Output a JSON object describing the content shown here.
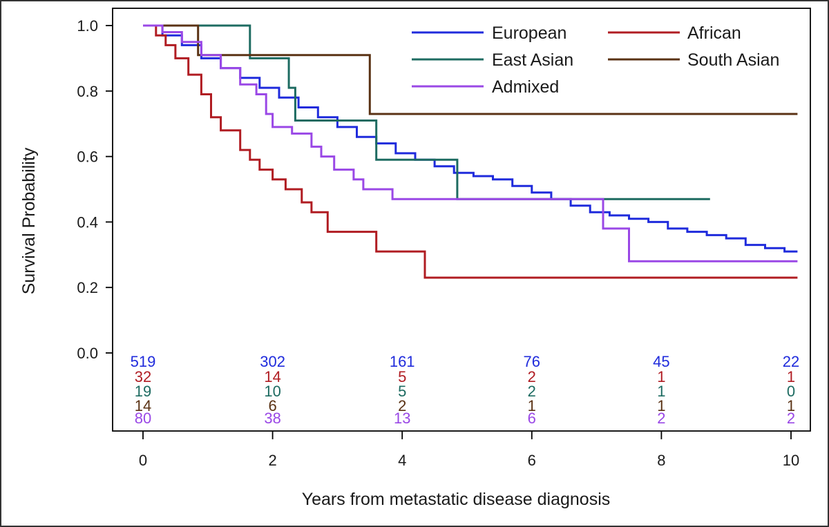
{
  "chart_data": {
    "type": "line",
    "title": "",
    "xlabel": "Years from metastatic disease diagnosis",
    "ylabel": "Survival Probability",
    "xlim": [
      0,
      10
    ],
    "ylim": [
      0,
      1.0
    ],
    "x_ticks": [
      0,
      2,
      4,
      6,
      8,
      10
    ],
    "x_tick_labels": [
      "0",
      "2",
      "4",
      "6",
      "8",
      "10"
    ],
    "y_ticks": [
      0.0,
      0.2,
      0.4,
      0.6,
      0.8,
      1.0
    ],
    "y_tick_labels": [
      "0.0",
      "0.2",
      "0.4",
      "0.6",
      "0.8",
      "1.0"
    ],
    "grid": false,
    "legend_position": "top-right",
    "series": [
      {
        "name": "European",
        "color": "#1f2bdc",
        "x": [
          0,
          0.3,
          0.6,
          0.9,
          1.2,
          1.5,
          1.8,
          2.1,
          2.4,
          2.7,
          3.0,
          3.3,
          3.6,
          3.9,
          4.2,
          4.5,
          4.8,
          5.1,
          5.4,
          5.7,
          6.0,
          6.3,
          6.6,
          6.9,
          7.2,
          7.5,
          7.8,
          8.1,
          8.4,
          8.7,
          9.0,
          9.3,
          9.6,
          9.9,
          10.1
        ],
        "y": [
          1.0,
          0.97,
          0.94,
          0.9,
          0.87,
          0.84,
          0.81,
          0.78,
          0.75,
          0.72,
          0.69,
          0.66,
          0.64,
          0.61,
          0.59,
          0.57,
          0.55,
          0.54,
          0.53,
          0.51,
          0.49,
          0.47,
          0.45,
          0.43,
          0.42,
          0.41,
          0.4,
          0.38,
          0.37,
          0.36,
          0.35,
          0.33,
          0.32,
          0.31,
          0.31
        ]
      },
      {
        "name": "African",
        "color": "#b01c22",
        "x": [
          0,
          0.2,
          0.35,
          0.5,
          0.7,
          0.9,
          1.05,
          1.2,
          1.5,
          1.65,
          1.8,
          2.0,
          2.2,
          2.45,
          2.6,
          2.85,
          3.6,
          4.35,
          10.1
        ],
        "y": [
          1.0,
          0.97,
          0.94,
          0.9,
          0.85,
          0.79,
          0.72,
          0.68,
          0.62,
          0.59,
          0.56,
          0.53,
          0.5,
          0.46,
          0.43,
          0.37,
          0.31,
          0.23,
          0.23
        ]
      },
      {
        "name": "East Asian",
        "color": "#1d6b61",
        "x": [
          0,
          1.65,
          2.25,
          2.35,
          3.6,
          4.85,
          8.75
        ],
        "y": [
          1.0,
          0.9,
          0.81,
          0.71,
          0.59,
          0.47,
          0.47
        ]
      },
      {
        "name": "South Asian",
        "color": "#5a3214",
        "x": [
          0,
          0.85,
          3.5,
          10.1
        ],
        "y": [
          1.0,
          0.91,
          0.73,
          0.73
        ]
      },
      {
        "name": "Admixed",
        "color": "#9a48e6",
        "x": [
          0,
          0.3,
          0.6,
          0.9,
          1.2,
          1.5,
          1.75,
          1.9,
          2.0,
          2.3,
          2.6,
          2.75,
          2.95,
          3.25,
          3.4,
          3.85,
          7.1,
          7.5,
          10.1
        ],
        "y": [
          1.0,
          0.98,
          0.95,
          0.91,
          0.87,
          0.82,
          0.79,
          0.73,
          0.69,
          0.67,
          0.63,
          0.6,
          0.56,
          0.53,
          0.5,
          0.47,
          0.38,
          0.28,
          0.28
        ]
      }
    ],
    "risk_table": {
      "times": [
        0,
        2,
        4,
        6,
        8,
        10
      ],
      "rows": [
        {
          "name": "European",
          "color": "#1f2bdc",
          "counts": [
            "519",
            "302",
            "161",
            "76",
            "45",
            "22"
          ]
        },
        {
          "name": "African",
          "color": "#b01c22",
          "counts": [
            "32",
            "14",
            "5",
            "2",
            "1",
            "1"
          ]
        },
        {
          "name": "East Asian",
          "color": "#1d6b61",
          "counts": [
            "19",
            "10",
            "5",
            "2",
            "1",
            "0"
          ]
        },
        {
          "name": "South Asian",
          "color": "#5a3214",
          "counts": [
            "14",
            "6",
            "2",
            "1",
            "1",
            "1"
          ]
        },
        {
          "name": "Admixed",
          "color": "#9a48e6",
          "counts": [
            "80",
            "38",
            "13",
            "6",
            "2",
            "2"
          ]
        }
      ]
    }
  }
}
